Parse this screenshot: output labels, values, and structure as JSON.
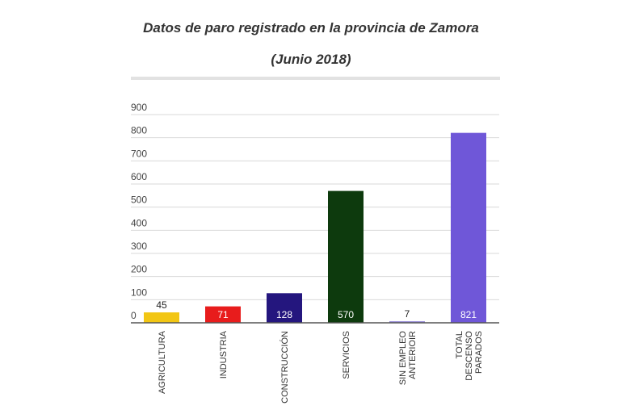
{
  "chart_data": {
    "type": "bar",
    "title": "Datos de paro registrado en la provincia de Zamora",
    "subtitle": "(Junio 2018)",
    "xlabel": "",
    "ylabel": "",
    "ylim": [
      0,
      900
    ],
    "yticks": [
      0,
      100,
      200,
      300,
      400,
      500,
      600,
      700,
      800,
      900
    ],
    "grid": true,
    "categories": [
      [
        "AGRICULTURA"
      ],
      [
        "INDUSTRIA"
      ],
      [
        "CONSTRUCCIÓN"
      ],
      [
        "SERVICIOS"
      ],
      [
        "SIN EMPLEO",
        "ANTERIOIR"
      ],
      [
        "TOTAL",
        "DESCENSO",
        "PARADOS"
      ]
    ],
    "values": [
      45,
      71,
      128,
      570,
      7,
      821
    ],
    "colors": [
      "#f2c614",
      "#e81c1c",
      "#24167e",
      "#0d3a0d",
      "#9a8fd8",
      "#6f57d8"
    ],
    "label_colors": [
      "#222222",
      "#ffffff",
      "#ffffff",
      "#ffffff",
      "#222222",
      "#ffffff"
    ]
  }
}
